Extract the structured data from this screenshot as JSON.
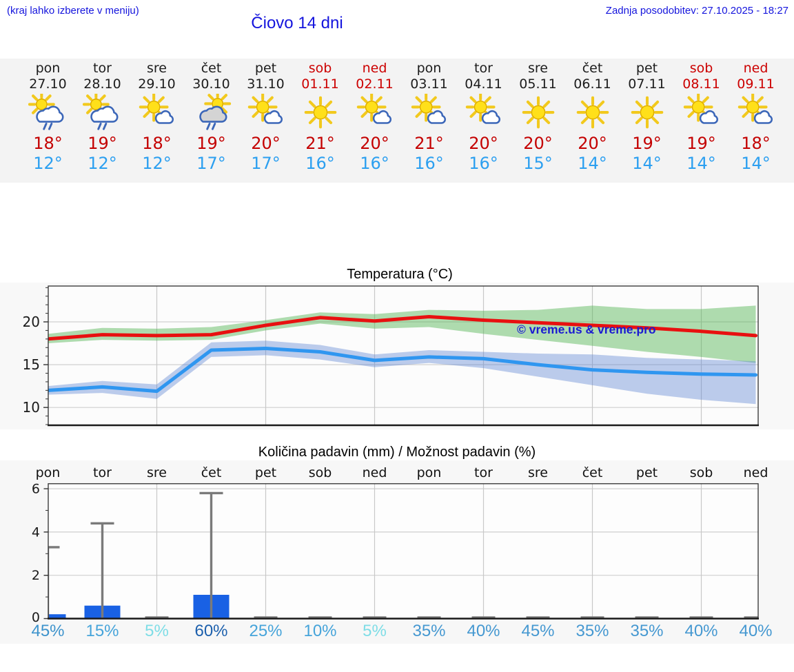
{
  "header": {
    "hint": "(kraj lahko izberete v meniju)",
    "updated": "Zadnja posodobitev: 27.10.2025 - 18:27",
    "title": "Čiovo 14 dni"
  },
  "colors": {
    "link_blue": "#1414dd",
    "high_red": "#c40000",
    "low_blue": "#2b9ff0",
    "weekend_red": "#cc0000",
    "strip_bg": "#f3f3f3"
  },
  "forecast": {
    "days": [
      {
        "name": "pon",
        "date": "27.10",
        "weekend": false,
        "icon": "sun-cloud-rain",
        "high": "18°",
        "low": "12°",
        "pop": "45%",
        "pop_color": "#3d93cc"
      },
      {
        "name": "tor",
        "date": "28.10",
        "weekend": false,
        "icon": "sun-cloud-rain",
        "high": "19°",
        "low": "12°",
        "pop": "15%",
        "pop_color": "#46a4da"
      },
      {
        "name": "sre",
        "date": "29.10",
        "weekend": false,
        "icon": "sun-cloud",
        "high": "18°",
        "low": "12°",
        "pop": "5%",
        "pop_color": "#7edde6"
      },
      {
        "name": "čet",
        "date": "30.10",
        "weekend": false,
        "icon": "cloud-rain-sun",
        "high": "19°",
        "low": "17°",
        "pop": "60%",
        "pop_color": "#1d60ad"
      },
      {
        "name": "pet",
        "date": "31.10",
        "weekend": false,
        "icon": "sun-cloud",
        "high": "20°",
        "low": "17°",
        "pop": "25%",
        "pop_color": "#46a4da"
      },
      {
        "name": "sob",
        "date": "01.11",
        "weekend": true,
        "icon": "sun",
        "high": "21°",
        "low": "16°",
        "pop": "10%",
        "pop_color": "#46a4da"
      },
      {
        "name": "ned",
        "date": "02.11",
        "weekend": true,
        "icon": "sun-cloud",
        "high": "20°",
        "low": "16°",
        "pop": "5%",
        "pop_color": "#7edde6"
      },
      {
        "name": "pon",
        "date": "03.11",
        "weekend": false,
        "icon": "sun-cloud",
        "high": "21°",
        "low": "16°",
        "pop": "35%",
        "pop_color": "#4598d1"
      },
      {
        "name": "tor",
        "date": "04.11",
        "weekend": false,
        "icon": "sun-cloud",
        "high": "20°",
        "low": "16°",
        "pop": "40%",
        "pop_color": "#4598d1"
      },
      {
        "name": "sre",
        "date": "05.11",
        "weekend": false,
        "icon": "sun",
        "high": "20°",
        "low": "15°",
        "pop": "45%",
        "pop_color": "#4598d1"
      },
      {
        "name": "čet",
        "date": "06.11",
        "weekend": false,
        "icon": "sun",
        "high": "20°",
        "low": "14°",
        "pop": "35%",
        "pop_color": "#4598d1"
      },
      {
        "name": "pet",
        "date": "07.11",
        "weekend": false,
        "icon": "sun",
        "high": "19°",
        "low": "14°",
        "pop": "35%",
        "pop_color": "#4598d1"
      },
      {
        "name": "sob",
        "date": "08.11",
        "weekend": true,
        "icon": "sun-cloud",
        "high": "19°",
        "low": "14°",
        "pop": "40%",
        "pop_color": "#4598d1"
      },
      {
        "name": "ned",
        "date": "09.11",
        "weekend": true,
        "icon": "sun-cloud",
        "high": "18°",
        "low": "14°",
        "pop": "40%",
        "pop_color": "#4598d1"
      }
    ]
  },
  "chart_data": [
    {
      "type": "line",
      "title": "Temperatura (°C)",
      "watermark": "© vreme.us & vreme.pro",
      "x": [
        "27.10",
        "28.10",
        "29.10",
        "30.10",
        "31.10",
        "01.11",
        "02.11",
        "03.11",
        "04.11",
        "05.11",
        "06.11",
        "07.11",
        "08.11",
        "09.11"
      ],
      "yticks": [
        10,
        15,
        20
      ],
      "ylim": [
        7.9,
        24.2
      ],
      "grid": true,
      "legend": "none",
      "series": [
        {
          "name": "max temperature",
          "color": "#e81010",
          "values": [
            18.0,
            18.5,
            18.4,
            18.5,
            19.6,
            20.5,
            20.1,
            20.6,
            20.2,
            19.9,
            19.6,
            19.3,
            18.9,
            18.4
          ]
        },
        {
          "name": "min temperature",
          "color": "#2f96f0",
          "values": [
            12.0,
            12.4,
            11.9,
            16.7,
            16.9,
            16.5,
            15.5,
            15.9,
            15.7,
            15.0,
            14.4,
            14.1,
            13.9,
            13.8
          ]
        }
      ],
      "bands": [
        {
          "name": "max range",
          "fill": "rgba(80,180,80,0.45)",
          "upper": [
            18.6,
            19.3,
            19.2,
            19.4,
            20.2,
            21.1,
            20.9,
            21.4,
            21.3,
            21.4,
            21.9,
            21.5,
            21.5,
            21.9
          ],
          "lower": [
            17.5,
            17.9,
            17.8,
            17.9,
            19.0,
            19.8,
            19.2,
            19.4,
            18.6,
            17.9,
            17.2,
            16.5,
            15.9,
            15.2
          ]
        },
        {
          "name": "min range",
          "fill": "rgba(90,130,210,0.40)",
          "upper": [
            12.5,
            13.1,
            12.7,
            17.6,
            17.8,
            17.3,
            16.2,
            16.7,
            16.5,
            16.3,
            16.2,
            15.8,
            15.6,
            15.4
          ],
          "lower": [
            11.5,
            11.7,
            11.0,
            15.9,
            16.1,
            15.6,
            14.7,
            15.2,
            14.6,
            13.6,
            12.6,
            11.6,
            10.9,
            10.4
          ]
        }
      ]
    },
    {
      "type": "bar",
      "title": "Količina padavin (mm) / Možnost padavin (%)",
      "categories": [
        "pon",
        "tor",
        "sre",
        "čet",
        "pet",
        "sob",
        "ned",
        "pon",
        "tor",
        "sre",
        "čet",
        "pet",
        "sob",
        "ned"
      ],
      "values": [
        0.2,
        0.6,
        0,
        1.1,
        0,
        0,
        0,
        0,
        0,
        0,
        0,
        0,
        0,
        0
      ],
      "whisker_max": [
        3.3,
        4.4,
        0.05,
        5.8,
        0.05,
        0.05,
        0.05,
        0.05,
        0.05,
        0.05,
        0.05,
        0.05,
        0.05,
        0.05
      ],
      "pop_percent": [
        45,
        15,
        5,
        60,
        25,
        10,
        5,
        35,
        40,
        45,
        35,
        35,
        40,
        40
      ],
      "yticks": [
        0,
        2,
        4,
        6
      ],
      "ylim": [
        0,
        6.3
      ],
      "grid": true,
      "bar_color": "#1961e4",
      "whisker_color": "#7a7a7a"
    }
  ]
}
